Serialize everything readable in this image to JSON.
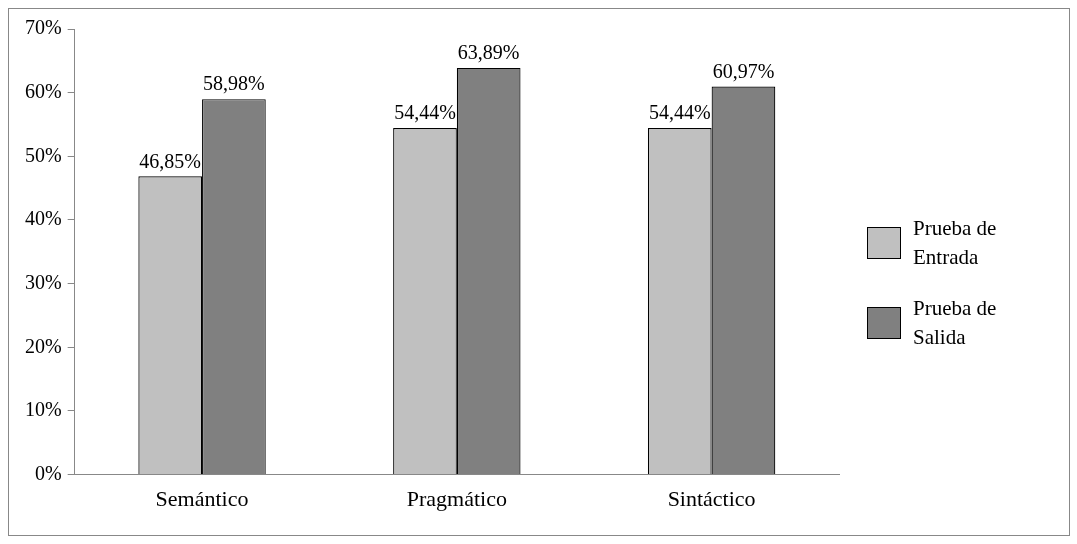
{
  "chart_data": {
    "type": "bar",
    "categories": [
      "Semántico",
      "Pragmático",
      "Sintáctico"
    ],
    "series": [
      {
        "name": "Prueba de Entrada",
        "color": "#c0c0c0",
        "values": [
          46.85,
          54.44,
          54.44
        ],
        "value_labels": [
          "46,85%",
          "54,44%",
          "54,44%"
        ]
      },
      {
        "name": "Prueba de Salida",
        "color": "#808080",
        "values": [
          58.98,
          63.89,
          60.97
        ],
        "value_labels": [
          "58,98%",
          "63,89%",
          "60,97%"
        ]
      }
    ],
    "ylim": [
      0,
      70
    ],
    "yticks": [
      {
        "value": 0,
        "label": "0%"
      },
      {
        "value": 10,
        "label": "10%"
      },
      {
        "value": 20,
        "label": "20%"
      },
      {
        "value": 30,
        "label": "30%"
      },
      {
        "value": 40,
        "label": "40%"
      },
      {
        "value": 50,
        "label": "50%"
      },
      {
        "value": 60,
        "label": "60%"
      },
      {
        "value": 70,
        "label": "70%"
      }
    ],
    "legend": "right"
  }
}
